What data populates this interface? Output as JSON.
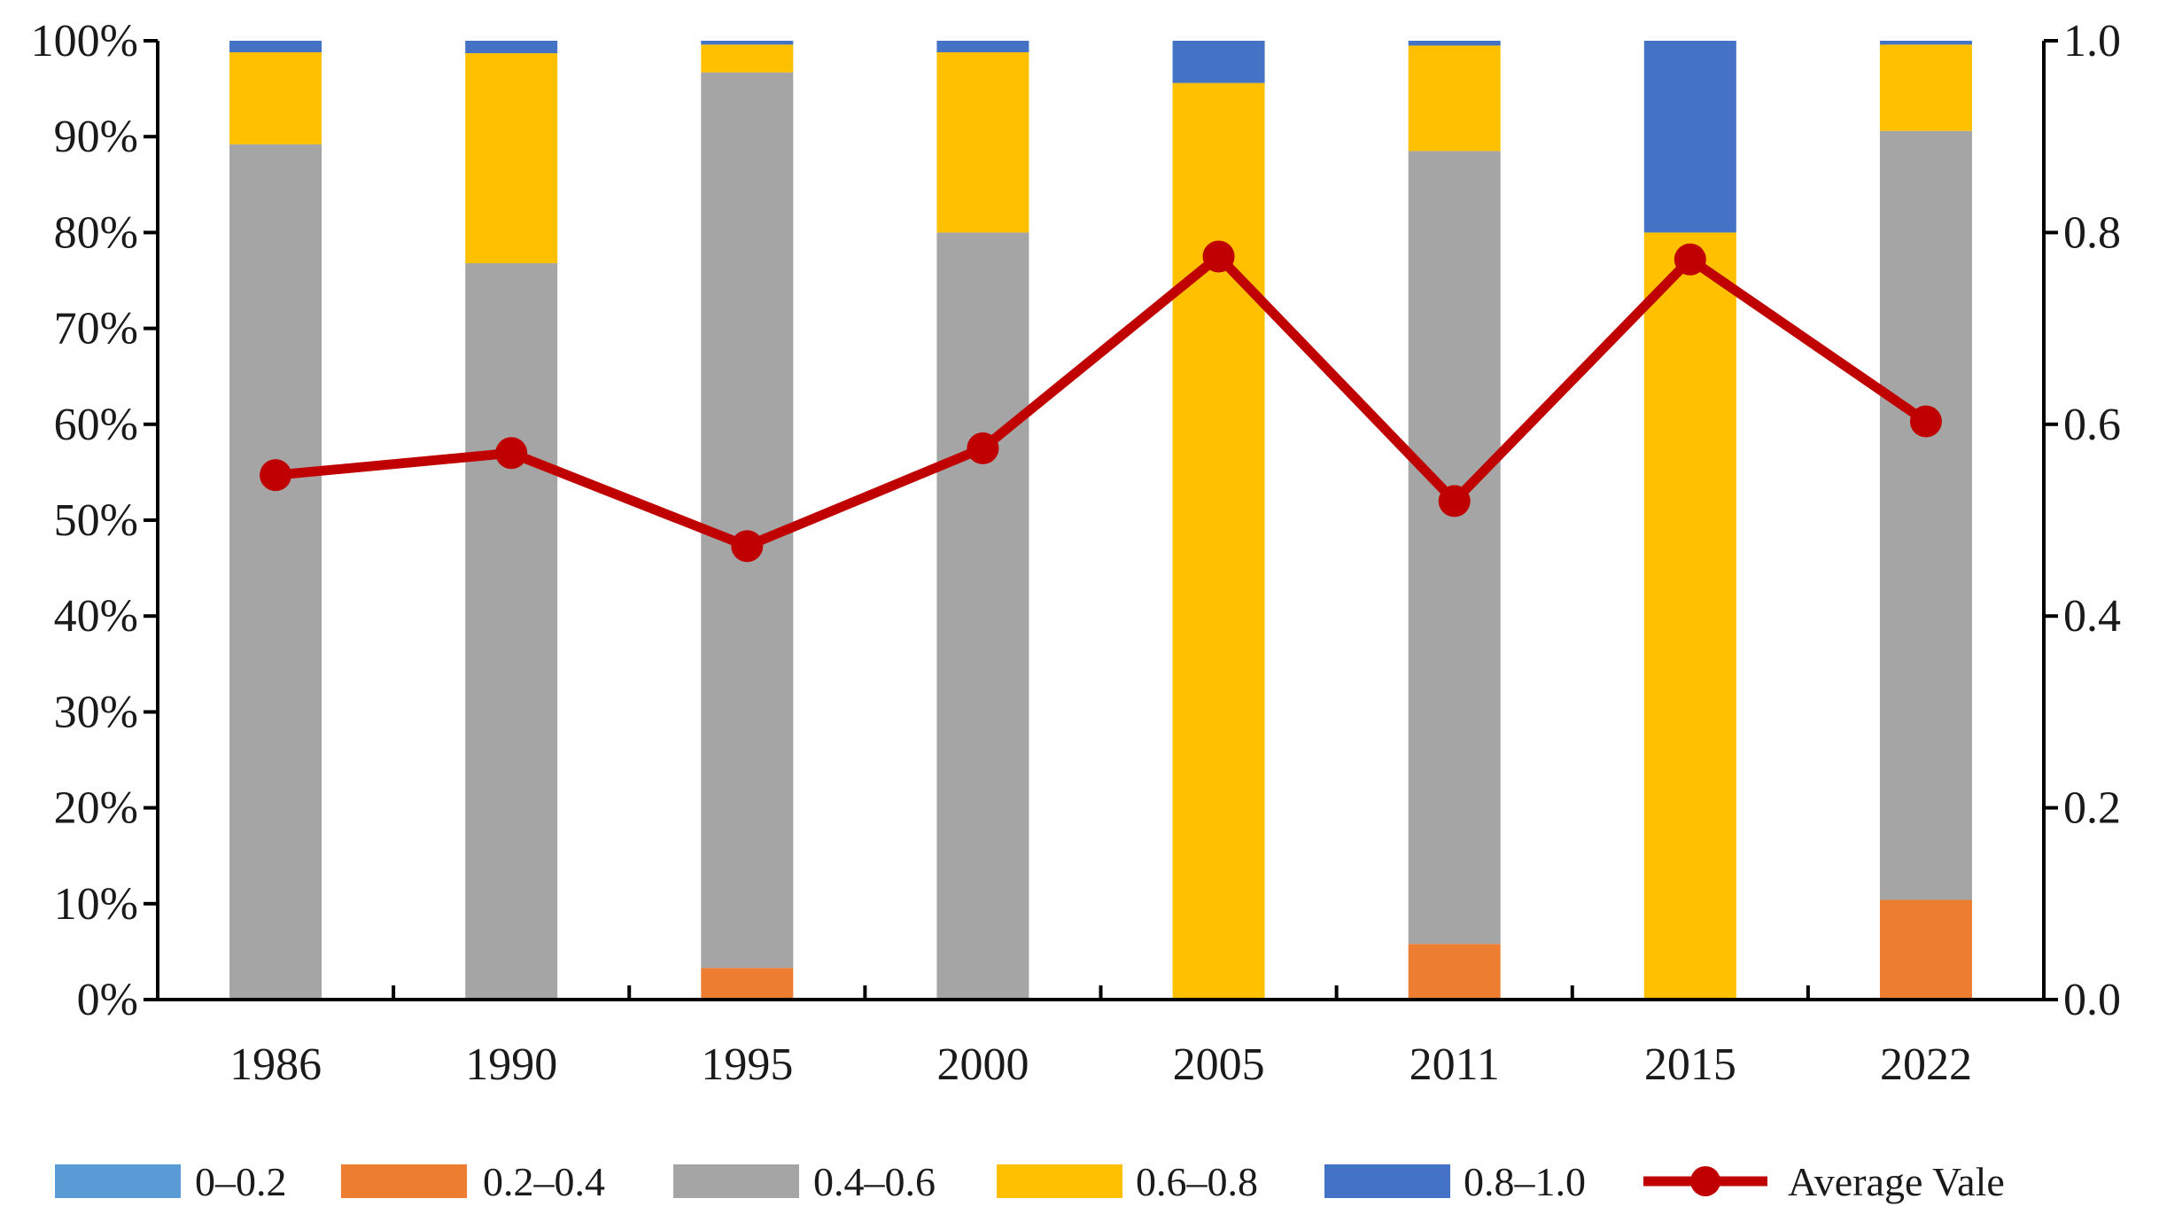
{
  "chart_data": {
    "type": "bar",
    "stacked": true,
    "normalized": true,
    "categories": [
      "1986",
      "1990",
      "1995",
      "2000",
      "2005",
      "2011",
      "2015",
      "2022"
    ],
    "series": [
      {
        "name": "0–0.2",
        "color": "#5B9BD5",
        "values": [
          0,
          0,
          0,
          0,
          0,
          0,
          0,
          0
        ]
      },
      {
        "name": "0.2–0.4",
        "color": "#ED7D31",
        "values": [
          0,
          0,
          3.3,
          0,
          0,
          5.8,
          0,
          10.4
        ]
      },
      {
        "name": "0.4–0.6",
        "color": "#A5A5A5",
        "values": [
          89.2,
          76.8,
          93.4,
          80.0,
          0,
          82.7,
          0,
          80.2
        ]
      },
      {
        "name": "0.6–0.8",
        "color": "#FFC000",
        "values": [
          9.6,
          21.9,
          2.9,
          18.8,
          95.6,
          11.0,
          80.0,
          9.0
        ]
      },
      {
        "name": "0.8–1.0",
        "color": "#4472C4",
        "values": [
          1.2,
          1.3,
          0.4,
          1.2,
          4.4,
          0.5,
          20.0,
          0.4
        ]
      }
    ],
    "line_series": {
      "name": "Average Vale",
      "color": "#C00000",
      "axis": "right",
      "values": [
        0.547,
        0.57,
        0.473,
        0.575,
        0.775,
        0.52,
        0.772,
        0.603
      ]
    },
    "y_left": {
      "min": 0,
      "max": 100,
      "step": 10,
      "tick_labels": [
        "0%",
        "10%",
        "20%",
        "30%",
        "40%",
        "50%",
        "60%",
        "70%",
        "80%",
        "90%",
        "100%"
      ]
    },
    "y_right": {
      "min": 0,
      "max": 1,
      "step": 0.2,
      "tick_labels": [
        "0.0",
        "0.2",
        "0.4",
        "0.6",
        "0.8",
        "1.0"
      ]
    },
    "legend_position": "bottom",
    "grid": false
  }
}
